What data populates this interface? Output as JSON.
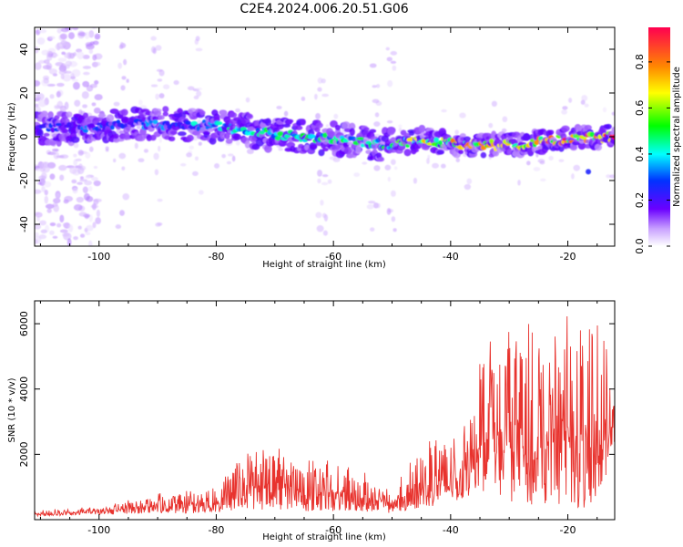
{
  "title": "C2E4.2024.006.20.51.G06",
  "chart_data": [
    {
      "type": "heatmap",
      "xlabel": "Height of straight line (km)",
      "ylabel": "Frequency (Hz)",
      "xlim": [
        -111,
        -12
      ],
      "ylim": [
        -50,
        50
      ],
      "xticks": [
        -100,
        -80,
        -60,
        -40,
        -20
      ],
      "yticks": [
        -40,
        -20,
        0,
        20,
        40
      ],
      "colorbar": {
        "label": "Normalized spectral amplitude",
        "range": [
          0,
          0.95
        ],
        "ticks": [
          0.0,
          0.2,
          0.4,
          0.6,
          0.8
        ],
        "colormap": [
          "#ffffff",
          "#c8a0ff",
          "#6a00ff",
          "#0033ff",
          "#00ffff",
          "#00ff00",
          "#ffff00",
          "#ff8800",
          "#ff0050"
        ]
      },
      "ridge": {
        "description": "dominant frequency band",
        "x": [
          -110,
          -100,
          -94,
          -80,
          -70,
          -60,
          -50,
          -45,
          -40,
          -30,
          -20,
          -13
        ],
        "freq": [
          4,
          4,
          6,
          5,
          1,
          -1,
          -4,
          -1,
          -3,
          -4,
          -1,
          0
        ],
        "amplitude": [
          0.25,
          0.3,
          0.3,
          0.4,
          0.5,
          0.45,
          0.5,
          0.65,
          0.7,
          0.7,
          0.8,
          0.9
        ]
      },
      "noise": {
        "high_noise_x_range": [
          -111,
          -100
        ],
        "scattered_columns_x": [
          -96,
          -90,
          -83,
          -62,
          -53,
          -50
        ]
      }
    },
    {
      "type": "line",
      "xlabel": "Height of straight line (km)",
      "ylabel": "SNR (10 * v/v)",
      "xlim": [
        -111,
        -12
      ],
      "ylim": [
        0,
        6700
      ],
      "xticks": [
        -100,
        -80,
        -60,
        -40,
        -20
      ],
      "yticks": [
        2000,
        4000,
        6000
      ],
      "series": [
        {
          "color": "#e8332e",
          "envelope_x": [
            -111,
            -100,
            -90,
            -80,
            -75,
            -70,
            -65,
            -60,
            -55,
            -50,
            -46,
            -43,
            -41,
            -38,
            -35,
            -32,
            -29,
            -26,
            -23,
            -20,
            -18,
            -16,
            -13,
            -12
          ],
          "envelope_max": [
            300,
            400,
            800,
            1100,
            2100,
            2400,
            1900,
            1800,
            1500,
            900,
            2000,
            2600,
            2900,
            2600,
            4900,
            5900,
            6300,
            6000,
            6000,
            6300,
            6000,
            6700,
            5200,
            4200
          ],
          "envelope_min": [
            100,
            150,
            200,
            200,
            300,
            300,
            250,
            250,
            250,
            200,
            300,
            400,
            500,
            600,
            900,
            700,
            500,
            300,
            400,
            200,
            100,
            400,
            1500,
            2400
          ]
        }
      ]
    }
  ]
}
